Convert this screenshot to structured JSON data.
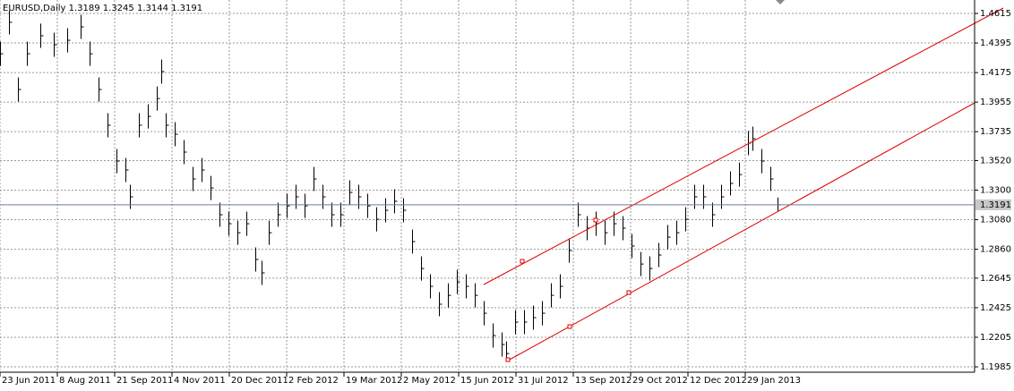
{
  "chart_data": {
    "type": "ohlc",
    "title": "EURUSD,Daily  1.3189 1.3245 1.3144 1.3191",
    "xlim": [
      0,
      544
    ],
    "xticks": [
      {
        "value": 0,
        "label": "23 Jun 2011"
      },
      {
        "value": 32,
        "label": "8 Aug 2011"
      },
      {
        "value": 64,
        "label": "21 Sep 2011"
      },
      {
        "value": 96,
        "label": "4 Nov 2011"
      },
      {
        "value": 128,
        "label": "20 Dec 2011"
      },
      {
        "value": 160,
        "label": "2 Feb 2012"
      },
      {
        "value": 192,
        "label": "19 Mar 2012"
      },
      {
        "value": 224,
        "label": "2 May 2012"
      },
      {
        "value": 256,
        "label": "15 Jun 2012"
      },
      {
        "value": 288,
        "label": "31 Jul 2012"
      },
      {
        "value": 320,
        "label": "13 Sep 2012"
      },
      {
        "value": 352,
        "label": "29 Oct 2012"
      },
      {
        "value": 384,
        "label": "12 Dec 2012"
      },
      {
        "value": 416,
        "label": "29 Jan 2013"
      }
    ],
    "ylim": [
      1.1945,
      1.4715
    ],
    "yticks": [
      1.4615,
      1.4395,
      1.4175,
      1.3955,
      1.3735,
      {
        "value": 1.352,
        "label": "1.3520"
      },
      {
        "value": 1.33,
        "label": "1.3300"
      },
      {
        "value": 1.308,
        "label": "1.3080"
      },
      {
        "value": 1.286,
        "label": "1.2860"
      },
      1.2645,
      1.2425,
      1.2205,
      1.1985
    ],
    "grid": true,
    "color": "#000000",
    "last_price": 1.3191,
    "x": [
      0,
      5,
      10,
      15,
      22.5,
      30,
      37.5,
      45,
      50,
      55,
      60,
      65,
      70,
      72.5,
      77.5,
      82.5,
      87.5,
      90,
      92.5,
      97.5,
      102.5,
      107.5,
      112.5,
      117.5,
      122.5,
      127.5,
      132.5,
      137.5,
      142.5,
      146,
      150,
      155,
      160,
      165,
      170,
      175,
      180,
      185,
      190,
      195,
      200,
      205,
      210,
      215,
      220,
      225,
      230,
      235,
      240,
      245,
      250,
      255,
      260,
      265,
      270,
      275,
      280,
      282.5,
      287.5,
      292.5,
      297.5,
      302.5,
      307.5,
      312.5,
      317.5,
      322.5,
      327.5,
      332.5,
      337.5,
      342.5,
      347.5,
      352.5,
      357.5,
      362.5,
      367.5,
      372.5,
      377.5,
      382.5,
      387.5,
      392.5,
      397.5,
      402.5,
      407.5,
      412.5,
      417.5,
      420,
      425,
      430,
      434
    ],
    "high": [
      1.4405,
      1.4639,
      1.4139,
      1.4405,
      1.4539,
      1.4472,
      1.4505,
      1.4605,
      1.4405,
      1.4139,
      1.3873,
      1.3606,
      1.354,
      1.334,
      1.3873,
      1.3939,
      1.4072,
      1.4272,
      1.3873,
      1.3806,
      1.3673,
      1.3473,
      1.354,
      1.3406,
      1.3207,
      1.314,
      1.3073,
      1.314,
      1.2874,
      1.2774,
      1.3073,
      1.3207,
      1.3273,
      1.334,
      1.3273,
      1.3473,
      1.334,
      1.3207,
      1.3207,
      1.3373,
      1.334,
      1.3273,
      1.3173,
      1.324,
      1.3307,
      1.324,
      1.3007,
      1.2807,
      1.2674,
      1.2541,
      1.2607,
      1.2707,
      1.2674,
      1.2607,
      1.2474,
      1.2308,
      1.2241,
      1.2174,
      1.2408,
      1.2408,
      1.2441,
      1.2474,
      1.2607,
      1.2674,
      1.294,
      1.3207,
      1.3107,
      1.314,
      1.3073,
      1.314,
      1.3107,
      1.2974,
      1.284,
      1.2807,
      1.2907,
      1.304,
      1.3073,
      1.3173,
      1.334,
      1.334,
      1.3207,
      1.334,
      1.344,
      1.3506,
      1.374,
      1.3773,
      1.3606,
      1.3473,
      1.3245
    ],
    "low": [
      1.4225,
      1.4459,
      1.3959,
      1.4225,
      1.4359,
      1.4292,
      1.4325,
      1.4425,
      1.4225,
      1.3959,
      1.3693,
      1.3426,
      1.336,
      1.316,
      1.3693,
      1.3759,
      1.3892,
      1.4092,
      1.3693,
      1.3626,
      1.3493,
      1.3293,
      1.336,
      1.3226,
      1.3027,
      1.296,
      1.2893,
      1.296,
      1.2694,
      1.2594,
      1.2893,
      1.3027,
      1.3093,
      1.316,
      1.3093,
      1.3293,
      1.316,
      1.3027,
      1.3027,
      1.3193,
      1.316,
      1.3093,
      1.2993,
      1.306,
      1.3127,
      1.306,
      1.2827,
      1.2627,
      1.2494,
      1.2361,
      1.2427,
      1.2527,
      1.2494,
      1.2427,
      1.2294,
      1.2128,
      1.2061,
      1.2025,
      1.2228,
      1.2228,
      1.2261,
      1.2294,
      1.2427,
      1.2494,
      1.276,
      1.3027,
      1.2927,
      1.296,
      1.2893,
      1.296,
      1.2927,
      1.2794,
      1.266,
      1.2627,
      1.2727,
      1.286,
      1.2893,
      1.2993,
      1.316,
      1.316,
      1.3027,
      1.316,
      1.326,
      1.3326,
      1.356,
      1.3593,
      1.3426,
      1.3293,
      1.3144
    ],
    "close": [
      1.4315,
      1.4549,
      1.4049,
      1.4315,
      1.4449,
      1.4382,
      1.4415,
      1.4515,
      1.4315,
      1.4049,
      1.3783,
      1.3516,
      1.345,
      1.325,
      1.3783,
      1.3849,
      1.3982,
      1.4182,
      1.3783,
      1.3716,
      1.3583,
      1.3383,
      1.345,
      1.3316,
      1.3117,
      1.305,
      1.2983,
      1.305,
      1.2784,
      1.2684,
      1.2983,
      1.3117,
      1.3183,
      1.325,
      1.3183,
      1.3383,
      1.325,
      1.3117,
      1.3117,
      1.3283,
      1.325,
      1.3183,
      1.3083,
      1.315,
      1.3217,
      1.315,
      1.2917,
      1.2717,
      1.2584,
      1.2451,
      1.2517,
      1.2617,
      1.2584,
      1.2517,
      1.2384,
      1.2218,
      1.2151,
      1.2084,
      1.2318,
      1.2318,
      1.2351,
      1.2384,
      1.2517,
      1.2584,
      1.285,
      1.3117,
      1.3017,
      1.305,
      1.2983,
      1.305,
      1.3017,
      1.2884,
      1.275,
      1.2717,
      1.2817,
      1.295,
      1.2983,
      1.3083,
      1.325,
      1.325,
      1.3117,
      1.325,
      1.335,
      1.3416,
      1.365,
      1.3683,
      1.3516,
      1.3383,
      1.3191
    ]
  }
}
